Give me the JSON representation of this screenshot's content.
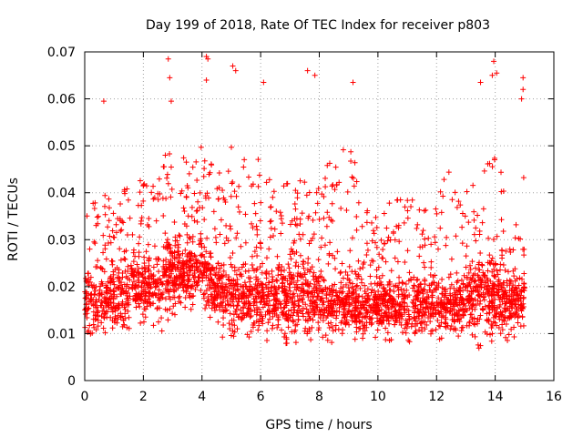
{
  "chart_data": {
    "type": "scatter",
    "title": "Day 199 of 2018, Rate Of TEC Index for receiver p803",
    "xlabel": "GPS time / hours",
    "ylabel": "ROTI / TECUs",
    "xlim": [
      0,
      16
    ],
    "ylim": [
      0,
      0.07
    ],
    "x_ticks": [
      0,
      2,
      4,
      6,
      8,
      10,
      12,
      14,
      16
    ],
    "x_tick_labels": [
      "0",
      "2",
      "4",
      "6",
      "8",
      "10",
      "12",
      "14",
      "16"
    ],
    "y_ticks": [
      0,
      0.01,
      0.02,
      0.03,
      0.04,
      0.05,
      0.06,
      0.07
    ],
    "y_tick_labels": [
      "0",
      "0.01",
      "0.02",
      "0.03",
      "0.04",
      "0.05",
      "0.06",
      "0.07"
    ],
    "grid": true,
    "marker": "plus",
    "marker_color": "#ff0000",
    "x_range_data": [
      0,
      15.0
    ],
    "notable_points": [
      {
        "x": 0.65,
        "y": 0.0595
      },
      {
        "x": 2.85,
        "y": 0.0685
      },
      {
        "x": 2.9,
        "y": 0.0645
      },
      {
        "x": 2.95,
        "y": 0.0595
      },
      {
        "x": 4.15,
        "y": 0.069
      },
      {
        "x": 4.2,
        "y": 0.0685
      },
      {
        "x": 4.15,
        "y": 0.064
      },
      {
        "x": 5.05,
        "y": 0.067
      },
      {
        "x": 5.15,
        "y": 0.066
      },
      {
        "x": 6.1,
        "y": 0.0635
      },
      {
        "x": 7.6,
        "y": 0.066
      },
      {
        "x": 7.85,
        "y": 0.065
      },
      {
        "x": 9.15,
        "y": 0.0635
      },
      {
        "x": 13.5,
        "y": 0.0635
      },
      {
        "x": 13.95,
        "y": 0.068
      },
      {
        "x": 13.9,
        "y": 0.065
      },
      {
        "x": 14.05,
        "y": 0.0655
      },
      {
        "x": 14.95,
        "y": 0.0645
      },
      {
        "x": 14.95,
        "y": 0.062
      },
      {
        "x": 14.9,
        "y": 0.06
      }
    ],
    "envelope": [
      {
        "x": 0.0,
        "low": 0.007,
        "mid": 0.016,
        "high": 0.045
      },
      {
        "x": 0.5,
        "low": 0.008,
        "mid": 0.018,
        "high": 0.044
      },
      {
        "x": 1.0,
        "low": 0.007,
        "mid": 0.018,
        "high": 0.04
      },
      {
        "x": 1.5,
        "low": 0.008,
        "mid": 0.019,
        "high": 0.042
      },
      {
        "x": 2.0,
        "low": 0.01,
        "mid": 0.02,
        "high": 0.045
      },
      {
        "x": 2.5,
        "low": 0.009,
        "mid": 0.021,
        "high": 0.048
      },
      {
        "x": 3.0,
        "low": 0.01,
        "mid": 0.022,
        "high": 0.05
      },
      {
        "x": 3.5,
        "low": 0.012,
        "mid": 0.023,
        "high": 0.048
      },
      {
        "x": 4.0,
        "low": 0.014,
        "mid": 0.024,
        "high": 0.05
      },
      {
        "x": 4.5,
        "low": 0.01,
        "mid": 0.02,
        "high": 0.045
      },
      {
        "x": 5.0,
        "low": 0.006,
        "mid": 0.018,
        "high": 0.05
      },
      {
        "x": 5.5,
        "low": 0.006,
        "mid": 0.018,
        "high": 0.048
      },
      {
        "x": 6.0,
        "low": 0.007,
        "mid": 0.018,
        "high": 0.047
      },
      {
        "x": 6.5,
        "low": 0.008,
        "mid": 0.017,
        "high": 0.04
      },
      {
        "x": 7.0,
        "low": 0.005,
        "mid": 0.018,
        "high": 0.045
      },
      {
        "x": 7.5,
        "low": 0.005,
        "mid": 0.018,
        "high": 0.05
      },
      {
        "x": 8.0,
        "low": 0.007,
        "mid": 0.017,
        "high": 0.045
      },
      {
        "x": 8.5,
        "low": 0.007,
        "mid": 0.016,
        "high": 0.048
      },
      {
        "x": 9.0,
        "low": 0.008,
        "mid": 0.017,
        "high": 0.05
      },
      {
        "x": 9.5,
        "low": 0.007,
        "mid": 0.016,
        "high": 0.044
      },
      {
        "x": 10.0,
        "low": 0.008,
        "mid": 0.016,
        "high": 0.035
      },
      {
        "x": 10.5,
        "low": 0.007,
        "mid": 0.016,
        "high": 0.04
      },
      {
        "x": 11.0,
        "low": 0.006,
        "mid": 0.016,
        "high": 0.04
      },
      {
        "x": 11.5,
        "low": 0.006,
        "mid": 0.016,
        "high": 0.036
      },
      {
        "x": 12.0,
        "low": 0.007,
        "mid": 0.016,
        "high": 0.04
      },
      {
        "x": 12.5,
        "low": 0.007,
        "mid": 0.016,
        "high": 0.046
      },
      {
        "x": 13.0,
        "low": 0.008,
        "mid": 0.017,
        "high": 0.04
      },
      {
        "x": 13.5,
        "low": 0.004,
        "mid": 0.018,
        "high": 0.05
      },
      {
        "x": 14.0,
        "low": 0.007,
        "mid": 0.018,
        "high": 0.048
      },
      {
        "x": 14.5,
        "low": 0.007,
        "mid": 0.017,
        "high": 0.04
      },
      {
        "x": 15.0,
        "low": 0.008,
        "mid": 0.017,
        "high": 0.046
      }
    ]
  }
}
